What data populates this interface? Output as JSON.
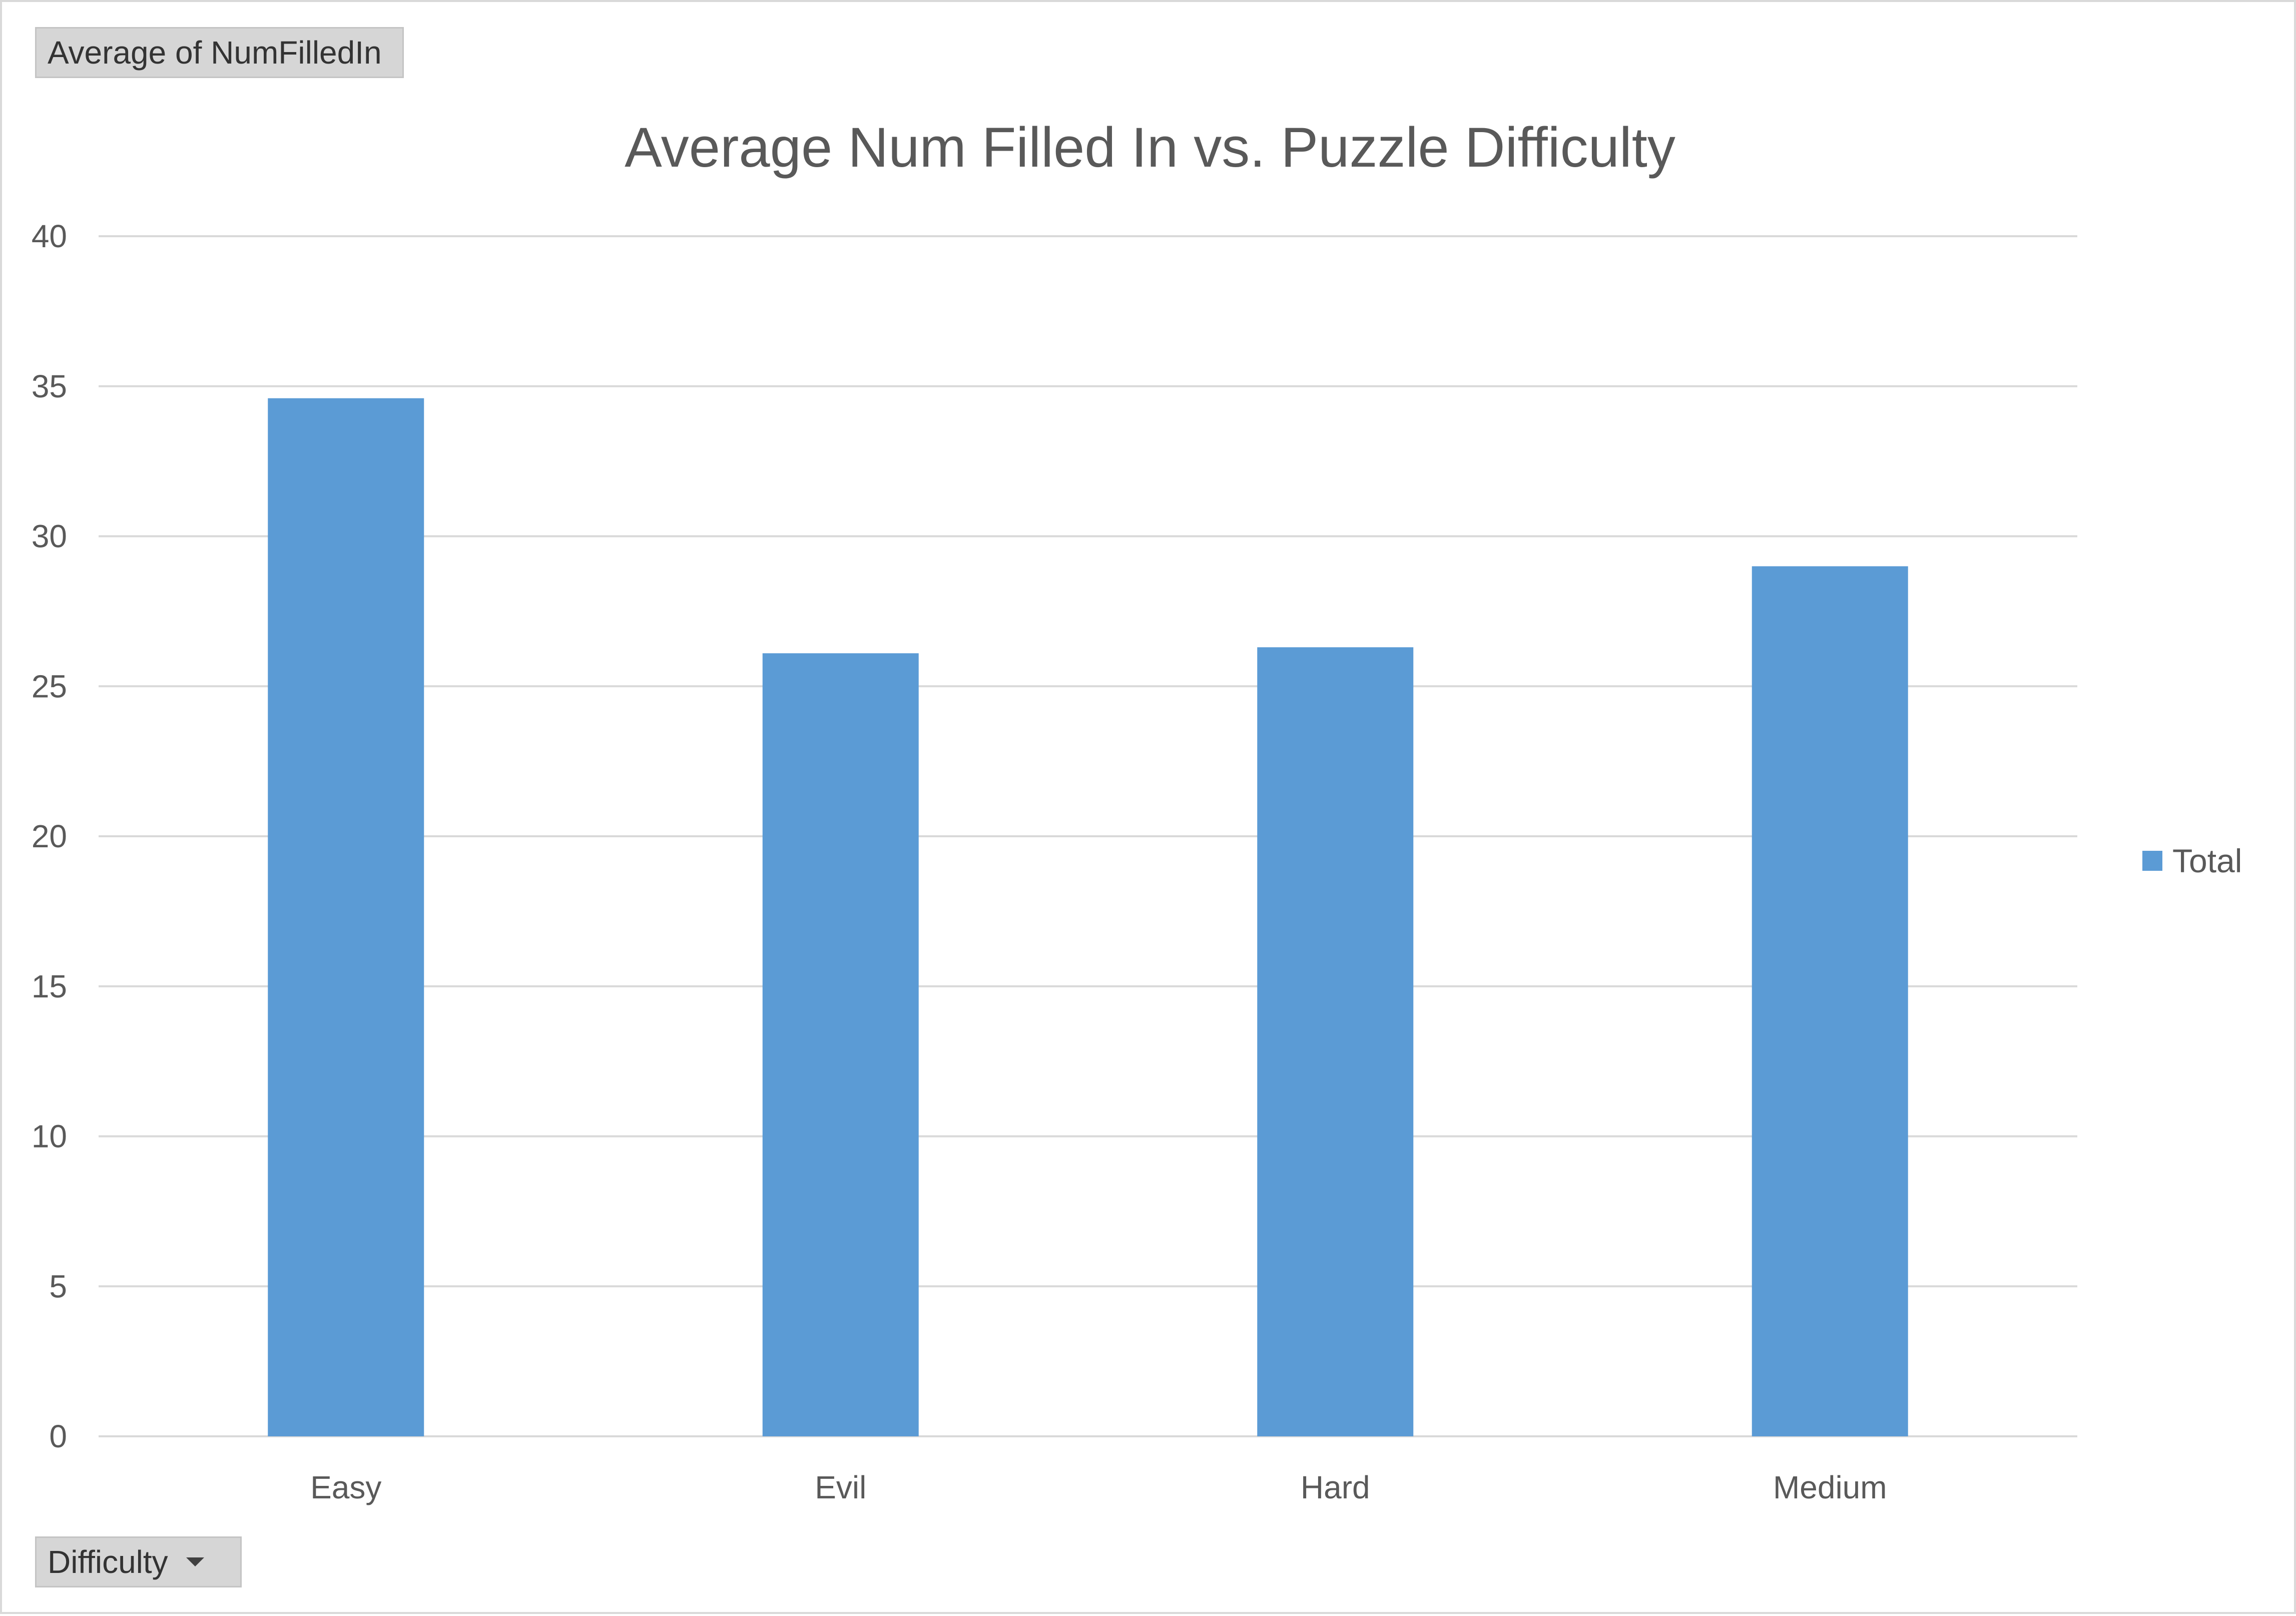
{
  "value_field_button": {
    "label": "Average of NumFilledIn"
  },
  "filter_field_button": {
    "label": "Difficulty"
  },
  "chart_data": {
    "type": "bar",
    "title": "Average Num Filled In vs. Puzzle Difficulty",
    "xlabel": "",
    "ylabel": "",
    "categories": [
      "Easy",
      "Evil",
      "Hard",
      "Medium"
    ],
    "series": [
      {
        "name": "Total",
        "values": [
          34.6,
          26.1,
          26.3,
          29.0
        ],
        "color": "#5b9bd5"
      }
    ],
    "ylim": [
      0,
      40
    ],
    "yticks": [
      0,
      5,
      10,
      15,
      20,
      25,
      30,
      35,
      40
    ],
    "grid": true,
    "legend_position": "right"
  }
}
